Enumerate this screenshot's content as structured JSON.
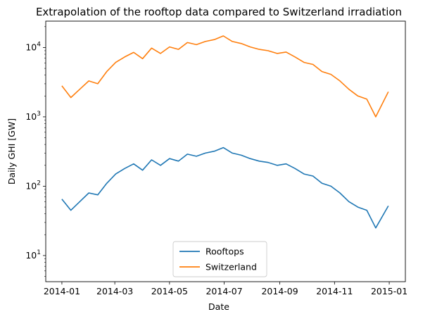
{
  "chart_data": {
    "type": "line",
    "title": "Extrapolation of the rooftop data compared to Switzerland irradiation",
    "xlabel": "Date",
    "ylabel": "Daily GHI [GW]",
    "yscale": "log",
    "ylim": [
      4.2,
      24000
    ],
    "xlim": [
      "2013-12-14",
      "2015-01-19"
    ],
    "x_ticks": [
      "2014-01",
      "2014-03",
      "2014-05",
      "2014-07",
      "2014-09",
      "2014-11",
      "2015-01"
    ],
    "y_ticks": [
      {
        "value": 10,
        "label": "10",
        "exp": "1"
      },
      {
        "value": 100,
        "label": "10",
        "exp": "2"
      },
      {
        "value": 1000,
        "label": "10",
        "exp": "3"
      },
      {
        "value": 10000,
        "label": "10",
        "exp": "4"
      }
    ],
    "grid": false,
    "legend_position": "bottom-center",
    "x": [
      "2014-01-01",
      "2014-01-11",
      "2014-01-21",
      "2014-01-31",
      "2014-02-10",
      "2014-02-20",
      "2014-03-02",
      "2014-03-12",
      "2014-03-22",
      "2014-04-01",
      "2014-04-11",
      "2014-04-21",
      "2014-05-01",
      "2014-05-11",
      "2014-05-21",
      "2014-05-31",
      "2014-06-10",
      "2014-06-20",
      "2014-06-30",
      "2014-07-10",
      "2014-07-20",
      "2014-07-30",
      "2014-08-09",
      "2014-08-19",
      "2014-08-29",
      "2014-09-08",
      "2014-09-18",
      "2014-09-28",
      "2014-10-08",
      "2014-10-18",
      "2014-10-28",
      "2014-11-07",
      "2014-11-17",
      "2014-11-27",
      "2014-12-07",
      "2014-12-17",
      "2014-12-31"
    ],
    "series": [
      {
        "name": "Rooftops",
        "color": "#1f77b4",
        "values": [
          65,
          45,
          60,
          80,
          75,
          110,
          150,
          180,
          210,
          170,
          240,
          200,
          250,
          230,
          290,
          270,
          300,
          320,
          360,
          300,
          280,
          250,
          230,
          220,
          200,
          210,
          180,
          150,
          140,
          110,
          100,
          80,
          60,
          50,
          45,
          25,
          52
        ]
      },
      {
        "name": "Switzerland",
        "color": "#ff7f0e",
        "values": [
          2800,
          1900,
          2500,
          3300,
          3000,
          4500,
          6100,
          7300,
          8500,
          6900,
          9800,
          8200,
          10200,
          9400,
          11800,
          11000,
          12200,
          13000,
          14700,
          12200,
          11400,
          10200,
          9400,
          9000,
          8200,
          8600,
          7300,
          6100,
          5700,
          4500,
          4100,
          3300,
          2500,
          2000,
          1800,
          1000,
          2300
        ]
      }
    ]
  }
}
